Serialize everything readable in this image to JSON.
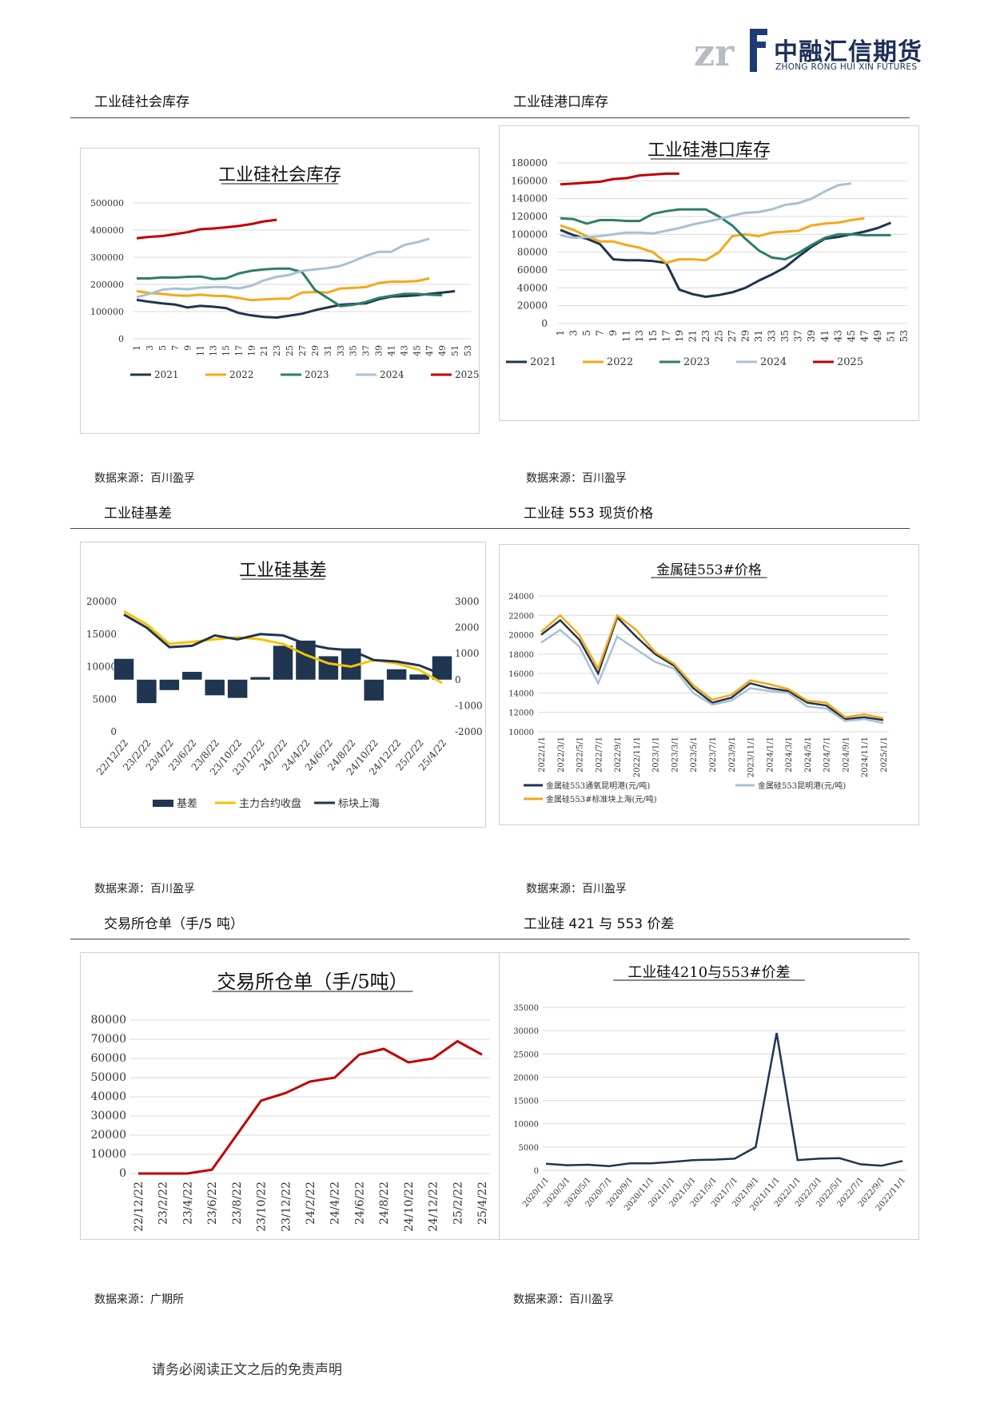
{
  "header": {
    "logo_cn": "中融汇信期货",
    "logo_en": "ZHONG RONG HUI XIN FUTURES"
  },
  "colors": {
    "c2021": "#1f3550",
    "c2022": "#f5a817",
    "c2023": "#2e7d6b",
    "c2024": "#a8c0d6",
    "c2025": "#c00000",
    "navy": "#1f3550",
    "red": "#c00000"
  },
  "sections": {
    "s1": {
      "title": "工业硅社会库存",
      "source": "数据来源：百川盈孚"
    },
    "s2": {
      "title": "工业硅港口库存",
      "source": "数据来源：百川盈孚"
    },
    "s3": {
      "title": "工业硅基差",
      "source": "数据来源：百川盈孚"
    },
    "s4": {
      "title": "工业硅 553 现货价格",
      "source": "数据来源：百川盈孚"
    },
    "s5": {
      "title": "交易所仓单（手/5 吨）",
      "source": "数据来源：广期所"
    },
    "s6": {
      "title": "工业硅 421 与 553 价差",
      "source": "数据来源：百川盈孚"
    }
  },
  "footer": "请务必阅读正文之后的免责声明",
  "chart_data": [
    {
      "id": "social_inventory",
      "type": "line",
      "title": "工业硅社会库存",
      "x": [
        1,
        3,
        5,
        7,
        9,
        11,
        13,
        15,
        17,
        19,
        21,
        23,
        25,
        27,
        29,
        31,
        33,
        35,
        37,
        39,
        41,
        43,
        45,
        47,
        49,
        51,
        53
      ],
      "ylim": [
        0,
        500000
      ],
      "yticks": [
        0,
        100000,
        200000,
        300000,
        400000,
        500000
      ],
      "series": [
        {
          "name": "2021",
          "color": "#1f3550",
          "values": [
            143000,
            136000,
            130000,
            126000,
            115000,
            121000,
            118000,
            113000,
            95000,
            86000,
            80000,
            78000,
            85000,
            92000,
            105000,
            115000,
            125000,
            128000,
            130000,
            145000,
            155000,
            157000,
            160000,
            165000,
            170000,
            175000,
            null
          ]
        },
        {
          "name": "2022",
          "color": "#f5a817",
          "values": [
            175000,
            168000,
            165000,
            160000,
            158000,
            162000,
            158000,
            157000,
            150000,
            142000,
            145000,
            147000,
            148000,
            170000,
            172000,
            170000,
            185000,
            187000,
            190000,
            205000,
            210000,
            210000,
            212000,
            222000,
            null,
            null,
            null
          ]
        },
        {
          "name": "2023",
          "color": "#2e7d6b",
          "values": [
            222000,
            222000,
            226000,
            225000,
            228000,
            229000,
            220000,
            222000,
            240000,
            250000,
            255000,
            258000,
            258000,
            245000,
            180000,
            150000,
            120000,
            125000,
            135000,
            150000,
            158000,
            165000,
            165000,
            162000,
            160000,
            null,
            null
          ]
        },
        {
          "name": "2024",
          "color": "#a8c0d6",
          "values": [
            153000,
            165000,
            180000,
            185000,
            182000,
            188000,
            190000,
            190000,
            185000,
            195000,
            215000,
            228000,
            235000,
            250000,
            255000,
            260000,
            268000,
            285000,
            305000,
            320000,
            320000,
            345000,
            355000,
            368000,
            null,
            null,
            null
          ]
        },
        {
          "name": "2025",
          "color": "#c00000",
          "values": [
            370000,
            375000,
            378000,
            385000,
            392000,
            403000,
            406000,
            410000,
            415000,
            422000,
            432000,
            438000,
            null,
            null,
            null,
            null,
            null,
            null,
            null,
            null,
            null,
            null,
            null,
            null,
            null,
            null,
            null
          ]
        }
      ]
    },
    {
      "id": "port_inventory",
      "type": "line",
      "title": "工业硅港口库存",
      "x": [
        1,
        3,
        5,
        7,
        9,
        11,
        13,
        15,
        17,
        19,
        21,
        23,
        25,
        27,
        29,
        31,
        33,
        35,
        37,
        39,
        41,
        43,
        45,
        47,
        49,
        51,
        53
      ],
      "ylim": [
        0,
        180000
      ],
      "yticks": [
        0,
        20000,
        40000,
        60000,
        80000,
        100000,
        120000,
        140000,
        160000,
        180000
      ],
      "series": [
        {
          "name": "2021",
          "color": "#1f3550",
          "values": [
            105000,
            99000,
            95000,
            89000,
            72000,
            71000,
            71000,
            70000,
            68000,
            38000,
            33000,
            30000,
            32000,
            35000,
            40000,
            48000,
            55000,
            63000,
            75000,
            86000,
            95000,
            97000,
            100000,
            103000,
            107000,
            113000,
            null
          ]
        },
        {
          "name": "2022",
          "color": "#f5a817",
          "values": [
            110000,
            105000,
            98000,
            92000,
            92000,
            88000,
            85000,
            80000,
            68000,
            72000,
            72000,
            71000,
            80000,
            98000,
            100000,
            98000,
            102000,
            103000,
            104000,
            110000,
            112000,
            113000,
            116000,
            118000,
            null,
            null,
            null
          ]
        },
        {
          "name": "2023",
          "color": "#2e7d6b",
          "values": [
            118000,
            117000,
            112000,
            116000,
            116000,
            115000,
            115000,
            123000,
            126000,
            128000,
            128000,
            128000,
            120000,
            110000,
            95000,
            82000,
            74000,
            72000,
            79000,
            88000,
            96000,
            100000,
            100000,
            99000,
            99000,
            99000,
            null
          ]
        },
        {
          "name": "2024",
          "color": "#a8c0d6",
          "values": [
            99000,
            96000,
            97000,
            98000,
            100000,
            102000,
            102000,
            101000,
            104000,
            107000,
            111000,
            114000,
            117000,
            121000,
            124000,
            125000,
            128000,
            133000,
            135000,
            140000,
            148000,
            155000,
            157000,
            null,
            null,
            null,
            null
          ]
        },
        {
          "name": "2025",
          "color": "#c00000",
          "values": [
            156000,
            157000,
            158000,
            159000,
            162000,
            163000,
            166000,
            167000,
            168000,
            168000,
            null,
            null,
            null,
            null,
            null,
            null,
            null,
            null,
            null,
            null,
            null,
            null,
            null,
            null,
            null,
            null,
            null
          ]
        }
      ]
    },
    {
      "id": "basis",
      "type": "bar+line",
      "title": "工业硅基差",
      "categories": [
        "22/12/22",
        "23/2/22",
        "23/4/22",
        "23/6/22",
        "23/8/22",
        "23/10/22",
        "23/12/22",
        "24/2/22",
        "24/4/22",
        "24/6/22",
        "24/8/22",
        "24/10/22",
        "24/12/22",
        "25/2/22",
        "25/4/22"
      ],
      "ylim_left": [
        0,
        20000
      ],
      "yticks_left": [
        0,
        5000,
        10000,
        15000,
        20000
      ],
      "ylim_right": [
        -2000,
        3000
      ],
      "yticks_right": [
        -2000,
        -1000,
        0,
        1000,
        2000,
        3000
      ],
      "series": [
        {
          "name": "基差",
          "color": "#1f3550",
          "axis": "right",
          "values": [
            800,
            -900,
            -400,
            300,
            -600,
            -700,
            100,
            1300,
            1500,
            900,
            1200,
            -800,
            400,
            200,
            900
          ]
        },
        {
          "name": "主力合约收盘",
          "color": "#f5c400",
          "axis": "left",
          "values": [
            18500,
            16500,
            13500,
            13800,
            14200,
            14500,
            14200,
            13500,
            11800,
            10500,
            10000,
            11000,
            10500,
            9500,
            7500
          ]
        },
        {
          "name": "标块上海",
          "color": "#1f3550",
          "axis": "left",
          "values": [
            18000,
            16000,
            13000,
            13200,
            14800,
            14200,
            15000,
            14800,
            13500,
            12800,
            12500,
            11000,
            10800,
            10200,
            8800
          ]
        }
      ]
    },
    {
      "id": "price553",
      "type": "line",
      "title": "金属硅553#价格",
      "categories": [
        "2022/1/1",
        "2022/3/1",
        "2022/5/1",
        "2022/7/1",
        "2022/9/1",
        "2022/11/1",
        "2023/1/1",
        "2023/3/1",
        "2023/5/1",
        "2023/7/1",
        "2023/9/1",
        "2023/11/1",
        "2024/1/1",
        "2024/3/1",
        "2024/5/1",
        "2024/7/1",
        "2024/9/1",
        "2024/11/1",
        "2025/1/1"
      ],
      "ylim": [
        10000,
        24000
      ],
      "yticks": [
        10000,
        12000,
        14000,
        16000,
        18000,
        20000,
        22000,
        24000
      ],
      "series": [
        {
          "name": "金属硅553通氧昆明港(元/吨)",
          "color": "#1f3550",
          "values": [
            20000,
            21500,
            19500,
            16000,
            21800,
            19800,
            18000,
            16800,
            14500,
            13000,
            13500,
            15000,
            14500,
            14200,
            13000,
            12700,
            11300,
            11500,
            11200
          ]
        },
        {
          "name": "金属硅553昆明港(元/吨)",
          "color": "#a8c0d6",
          "values": [
            19200,
            20500,
            18800,
            15000,
            19800,
            18500,
            17200,
            16500,
            14000,
            12800,
            13200,
            14500,
            14200,
            14000,
            12600,
            12400,
            11100,
            11300,
            10900
          ]
        },
        {
          "name": "金属硅553#标准块上海(元/吨)",
          "color": "#f5a817",
          "values": [
            20300,
            22000,
            20000,
            16500,
            22000,
            20500,
            18200,
            17000,
            14800,
            13300,
            13800,
            15300,
            14900,
            14400,
            13200,
            13000,
            11500,
            11800,
            11400
          ]
        }
      ]
    },
    {
      "id": "warrants",
      "type": "line",
      "title": "交易所仓单（手/5吨）",
      "categories": [
        "22/12/22",
        "23/2/22",
        "23/4/22",
        "23/6/22",
        "23/8/22",
        "23/10/22",
        "23/12/22",
        "24/2/22",
        "24/4/22",
        "24/6/22",
        "24/8/22",
        "24/10/22",
        "24/12/22",
        "25/2/22",
        "25/4/22"
      ],
      "ylim": [
        0,
        80000
      ],
      "yticks": [
        0,
        10000,
        20000,
        30000,
        40000,
        50000,
        60000,
        70000,
        80000
      ],
      "series": [
        {
          "name": "仓单",
          "color": "#c00000",
          "values": [
            0,
            0,
            0,
            2000,
            20000,
            38000,
            42000,
            48000,
            50000,
            62000,
            65000,
            58000,
            60000,
            69000,
            62000
          ]
        }
      ]
    },
    {
      "id": "spread421",
      "type": "line",
      "title": "工业硅4210与553#价差",
      "categories": [
        "2020/1/1",
        "2020/3/1",
        "2020/5/1",
        "2020/7/1",
        "2020/9/1",
        "2020/11/1",
        "2021/1/1",
        "2021/3/1",
        "2021/5/1",
        "2021/7/1",
        "2021/9/1",
        "2021/11/1",
        "2022/1/1",
        "2022/3/1",
        "2022/5/1",
        "2022/7/1",
        "2022/9/1",
        "2022/11/1"
      ],
      "ylim": [
        0,
        35000
      ],
      "yticks": [
        0,
        5000,
        10000,
        15000,
        20000,
        25000,
        30000,
        35000
      ],
      "series": [
        {
          "name": "价差",
          "color": "#1f3550",
          "values": [
            1400,
            1100,
            1200,
            900,
            1500,
            1500,
            1800,
            2200,
            2300,
            2500,
            5000,
            29500,
            2200,
            2500,
            2600,
            1300,
            1000,
            2000
          ]
        }
      ]
    }
  ]
}
